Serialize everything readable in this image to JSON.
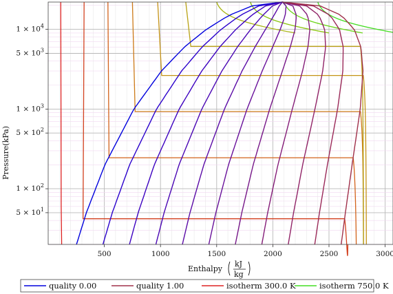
{
  "chart_data": {
    "type": "line",
    "title": "",
    "xlabel": "Enthalpy",
    "x_unit_num": "kJ",
    "x_unit_den": "kg",
    "ylabel": "Pressure",
    "y_unit": "kPa",
    "xlim": [
      0,
      3070
    ],
    "ylim": [
      20,
      22000
    ],
    "y_scale": "log",
    "grid": true,
    "legend_placement": "bottom",
    "x_ticks": [
      {
        "value": 500,
        "label": "500"
      },
      {
        "value": 1000,
        "label": "1000"
      },
      {
        "value": 1500,
        "label": "1500"
      },
      {
        "value": 2000,
        "label": "2000"
      },
      {
        "value": 2500,
        "label": "2500"
      },
      {
        "value": 3000,
        "label": "3000"
      }
    ],
    "y_ticks": [
      {
        "value": 50,
        "label": "5 × 10"
      },
      {
        "value": 100,
        "label": "1 × 10"
      },
      {
        "value": 500,
        "label": "5 × 10"
      },
      {
        "value": 1000,
        "label": "1 × 10"
      },
      {
        "value": 5000,
        "label": "5 × 10"
      },
      {
        "value": 10000,
        "label": "1 × 10"
      }
    ],
    "y_tick_exponents": [
      "1",
      "2",
      "2",
      "3",
      "3",
      "4"
    ],
    "legend": [
      {
        "name": "quality 0.00",
        "color": "#0000dd"
      },
      {
        "name": "quality 1.00",
        "color": "#a0304a"
      },
      {
        "name": "isotherm 300.0 K",
        "color": "#dd2222"
      },
      {
        "name": "isotherm 750.0 K",
        "color": "#44dd22"
      }
    ],
    "critical_point": {
      "h": 2085,
      "p": 22064
    },
    "quality_lines": [
      {
        "quality": 0.0,
        "color": "#0000dd"
      },
      {
        "quality": 0.1,
        "color": "#2a00cc"
      },
      {
        "quality": 0.2,
        "color": "#3c00c0"
      },
      {
        "quality": 0.3,
        "color": "#4a06b4"
      },
      {
        "quality": 0.4,
        "color": "#5a0aa6"
      },
      {
        "quality": 0.5,
        "color": "#68109a"
      },
      {
        "quality": 0.6,
        "color": "#761688"
      },
      {
        "quality": 0.7,
        "color": "#841c78"
      },
      {
        "quality": 0.8,
        "color": "#902266"
      },
      {
        "quality": 0.9,
        "color": "#9a2858"
      },
      {
        "quality": 1.0,
        "color": "#a0304a"
      }
    ],
    "saturation": {
      "p": [
        20,
        50,
        200,
        1000,
        3000,
        6000,
        10000,
        15000,
        20000,
        22064
      ],
      "hf": [
        252,
        340,
        505,
        763,
        1008,
        1213,
        1408,
        1610,
        1827,
        2085
      ],
      "hg": [
        2609,
        2646,
        2706,
        2778,
        2803,
        2784,
        2725,
        2611,
        2410,
        2085
      ]
    },
    "isotherms": [
      {
        "T": 300,
        "color": "#dd2222",
        "h_liquid": 112,
        "h_vapor": null
      },
      {
        "T": 350,
        "color": "#d2401e",
        "h_liquid": 320,
        "h_vapor": 2640,
        "p_sat": 42
      },
      {
        "T": 400,
        "color": "#d2621a",
        "h_liquid": 532,
        "h_vapor": 2715,
        "p_sat": 245
      },
      {
        "T": 450,
        "color": "#cc7a18",
        "h_liquid": 750,
        "h_vapor": 2780,
        "p_sat": 930
      },
      {
        "T": 500,
        "color": "#c49216",
        "h_liquid": 975,
        "h_vapor": 2805,
        "p_sat": 2640
      },
      {
        "T": 550,
        "color": "#b8a214",
        "h_liquid": 1225,
        "h_vapor": 2780,
        "p_sat": 6120
      },
      {
        "T": 600,
        "color": "#a8b412",
        "h_liquid": 1500,
        "h_vapor": null
      },
      {
        "T": 650,
        "color": "#8cc410",
        "h_liquid": 1800,
        "h_vapor": null
      },
      {
        "T": 700,
        "color": "#6cd41a",
        "h_liquid": 2100,
        "h_vapor": null
      },
      {
        "T": 750,
        "color": "#44dd22",
        "h_liquid": 2400,
        "h_vapor": null
      }
    ]
  }
}
